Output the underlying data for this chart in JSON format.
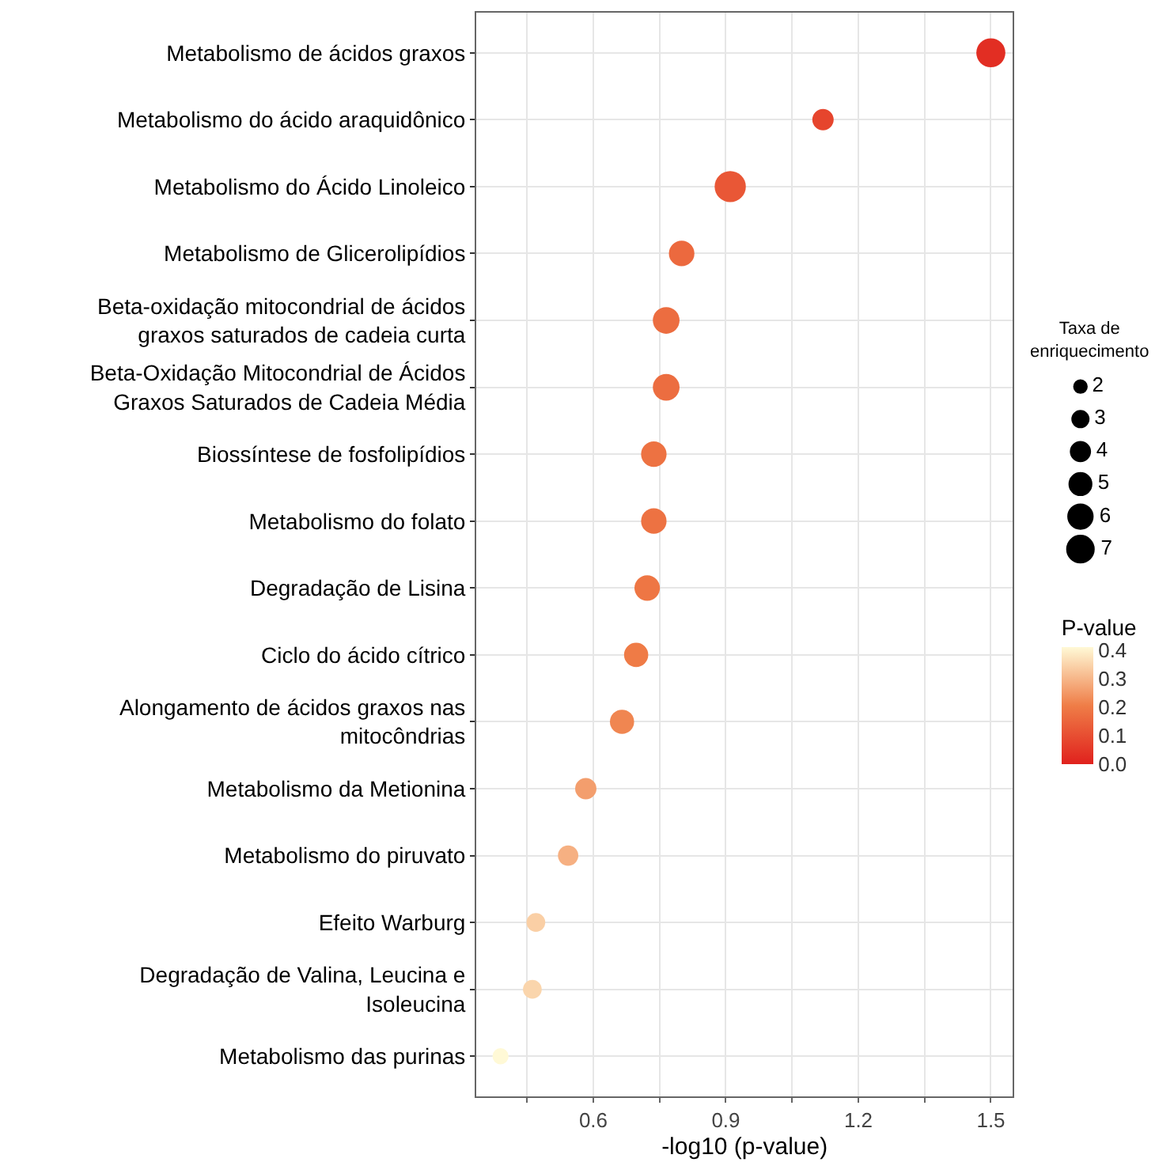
{
  "chart_data": {
    "type": "bubble",
    "xlabel": "-log10 (p-value)",
    "legend_title": "Taxa de enriquecimento",
    "clabel": "P-value",
    "categories": [
      "Metabolismo de ácidos graxos",
      "Metabolismo do ácido araquidônico",
      "Metabolismo do Ácido Linoleico",
      "Metabolismo de Glicerolipídios",
      "Beta-oxidação mitocondrial de ácidos graxos saturados de cadeia curta",
      "Beta-Oxidação Mitocondrial de Ácidos Graxos Saturados de Cadeia Média",
      "Biossíntese de fosfolipídios",
      "Metabolismo do folato",
      "Degradação de Lisina",
      "Ciclo do ácido cítrico",
      "Alongamento de ácidos graxos nas mitocôndrias",
      "Metabolismo da Metionina",
      "Metabolismo do piruvato",
      "Efeito Warburg",
      "Degradação de Valina, Leucina e Isoleucina",
      "Metabolismo das purinas"
    ],
    "orientation": "horizontal",
    "values": [
      1.5,
      1.12,
      0.91,
      0.8,
      0.765,
      0.765,
      0.737,
      0.737,
      0.722,
      0.697,
      0.665,
      0.583,
      0.543,
      0.47,
      0.462,
      0.39
    ],
    "sizes": [
      6.5,
      3.5,
      7.5,
      5,
      5.5,
      5.5,
      5,
      5,
      5,
      4.5,
      4.5,
      3.5,
      3.2,
      2.7,
      2.7,
      2
    ],
    "size_legend": [
      2,
      3,
      4,
      5,
      6,
      7
    ],
    "cvalues": [
      0.03,
      0.08,
      0.12,
      0.16,
      0.17,
      0.17,
      0.18,
      0.18,
      0.19,
      0.2,
      0.22,
      0.26,
      0.29,
      0.34,
      0.35,
      0.41
    ],
    "clim": [
      0,
      0.41
    ],
    "cticks": [
      {
        "value": 0,
        "label": "0.0"
      },
      0.1,
      0.2,
      0.3,
      0.4
    ],
    "xlim": [
      0.335,
      1.55
    ],
    "xticks": [
      {
        "value": 0.45,
        "label": null
      },
      0.6,
      {
        "value": 0.75,
        "label": null
      },
      0.9,
      {
        "value": 1.05,
        "label": null
      },
      1.2,
      {
        "value": 1.35,
        "label": null
      },
      1.5
    ],
    "grid": true,
    "marker": "circle"
  }
}
